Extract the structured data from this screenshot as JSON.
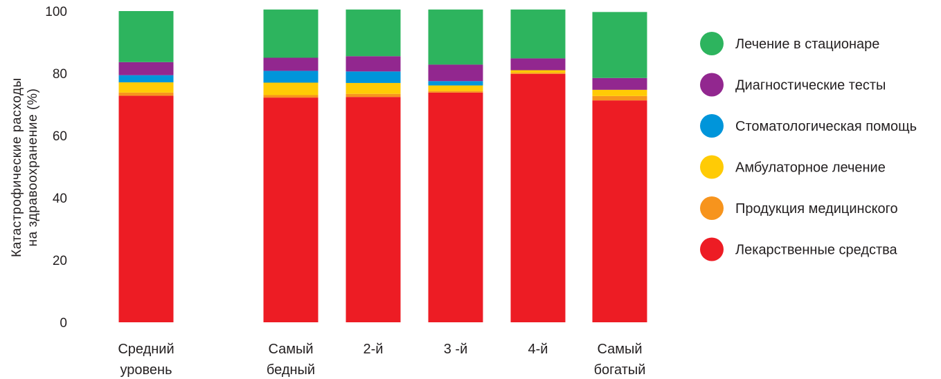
{
  "chart_data": {
    "type": "bar",
    "stacked": true,
    "ylabel_lines": [
      "Катастрофические расходы",
      "на здравоохранение (%)"
    ],
    "ylim": [
      0,
      100
    ],
    "yticks": [
      "0",
      "20",
      "40",
      "60",
      "80",
      "100"
    ],
    "grid": false,
    "legend_position": "right",
    "categories": [
      [
        "Средний",
        "уровень"
      ],
      [
        "Самый",
        "бедный"
      ],
      [
        "2-й"
      ],
      [
        "3 -й"
      ],
      [
        "4-й"
      ],
      [
        "Самый",
        "богатый"
      ]
    ],
    "series": [
      {
        "name": "Лекарственные средства",
        "color": "#ed1c24",
        "values": [
          72.8,
          72.2,
          72.4,
          73.8,
          79.8,
          71.3
        ]
      },
      {
        "name": "Продукция медицинского",
        "color": "#f7941d",
        "values": [
          1.0,
          0.8,
          1.0,
          0.5,
          0.4,
          1.4
        ]
      },
      {
        "name": "Амбулаторное лечение",
        "color": "#ffcb05",
        "values": [
          3.3,
          4.0,
          3.5,
          1.8,
          0.8,
          2.0
        ]
      },
      {
        "name": "Стоматологическая помощь",
        "color": "#0095da",
        "values": [
          2.3,
          3.8,
          3.7,
          1.4,
          0.0,
          0.0
        ]
      },
      {
        "name": "Диагностические тесты",
        "color": "#92278f",
        "values": [
          4.2,
          4.2,
          4.9,
          5.3,
          3.8,
          3.8
        ]
      },
      {
        "name": "Лечение в стационаре",
        "color": "#2db45e",
        "values": [
          16.4,
          15.5,
          15.0,
          17.7,
          15.7,
          21.2
        ]
      }
    ],
    "legend_order": [
      5,
      4,
      3,
      2,
      1,
      0
    ]
  }
}
